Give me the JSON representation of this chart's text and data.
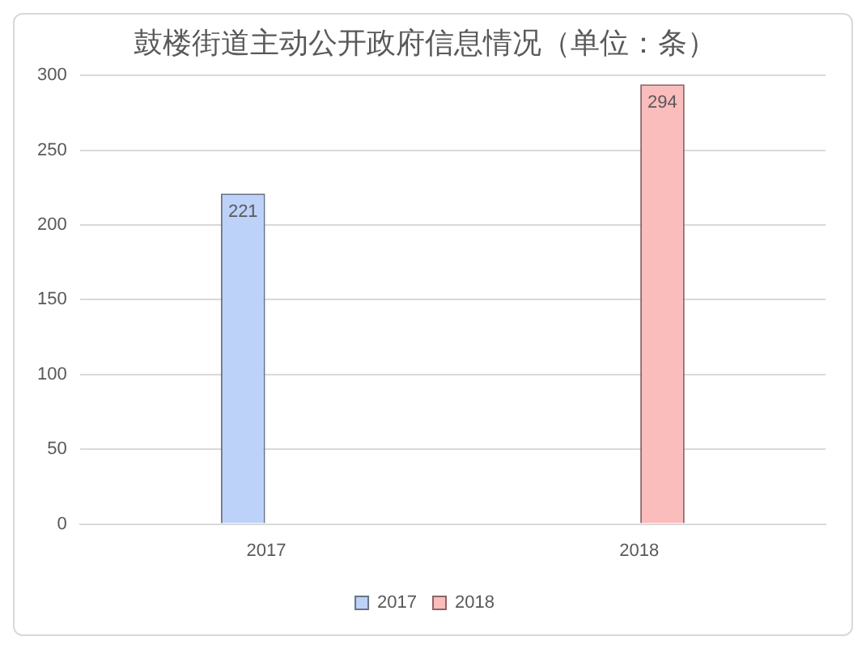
{
  "chart_data": {
    "type": "bar",
    "title": "鼓楼街道主动公开政府信息情况（单位：条）",
    "categories": [
      "2017",
      "2018"
    ],
    "series": [
      {
        "name": "2017",
        "color": "#bcd2f8",
        "values": [
          221,
          null
        ]
      },
      {
        "name": "2018",
        "color": "#fbbcbc",
        "values": [
          null,
          294
        ]
      }
    ],
    "ylim": [
      0,
      300
    ],
    "yticks": [
      0,
      50,
      100,
      150,
      200,
      250,
      300
    ],
    "grid": "y",
    "legend": "bottom",
    "data_labels": true
  }
}
